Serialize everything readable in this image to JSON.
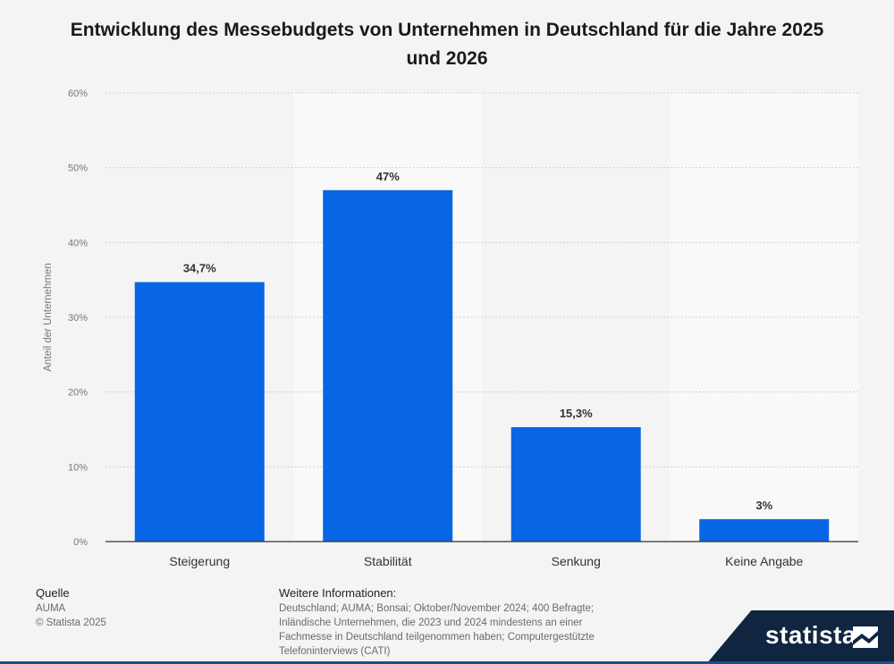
{
  "chart_data": {
    "type": "bar",
    "title": "Entwicklung des Messebudgets von Unternehmen in Deutschland für die Jahre 2025 und 2026",
    "categories": [
      "Steigerung",
      "Stabilität",
      "Senkung",
      "Keine Angabe"
    ],
    "values": [
      34.7,
      47,
      15.3,
      3
    ],
    "value_labels": [
      "34,7%",
      "47%",
      "15,3%",
      "3%"
    ],
    "ylabel": "Anteil der Unternehmen",
    "xlabel": "",
    "ylim": [
      0,
      60
    ],
    "yticks": [
      0,
      10,
      20,
      30,
      40,
      50,
      60
    ],
    "ytick_labels": [
      "0%",
      "10%",
      "20%",
      "30%",
      "40%",
      "50%",
      "60%"
    ],
    "grid": true,
    "bar_color": "#0866e5"
  },
  "footer": {
    "source_heading": "Quelle",
    "source_lines": [
      "AUMA",
      "© Statista 2025"
    ],
    "info_heading": "Weitere Informationen:",
    "info_lines": [
      "Deutschland; AUMA; Bonsai; Oktober/November 2024; 400 Befragte;",
      "Inländische Unternehmen, die 2023 und 2024 mindestens an einer",
      "Fachmesse in Deutschland teilgenommen haben; Computergestützte",
      "Telefoninterviews (CATI)"
    ]
  },
  "brand": {
    "name": "statista",
    "color": "#0f2540"
  }
}
